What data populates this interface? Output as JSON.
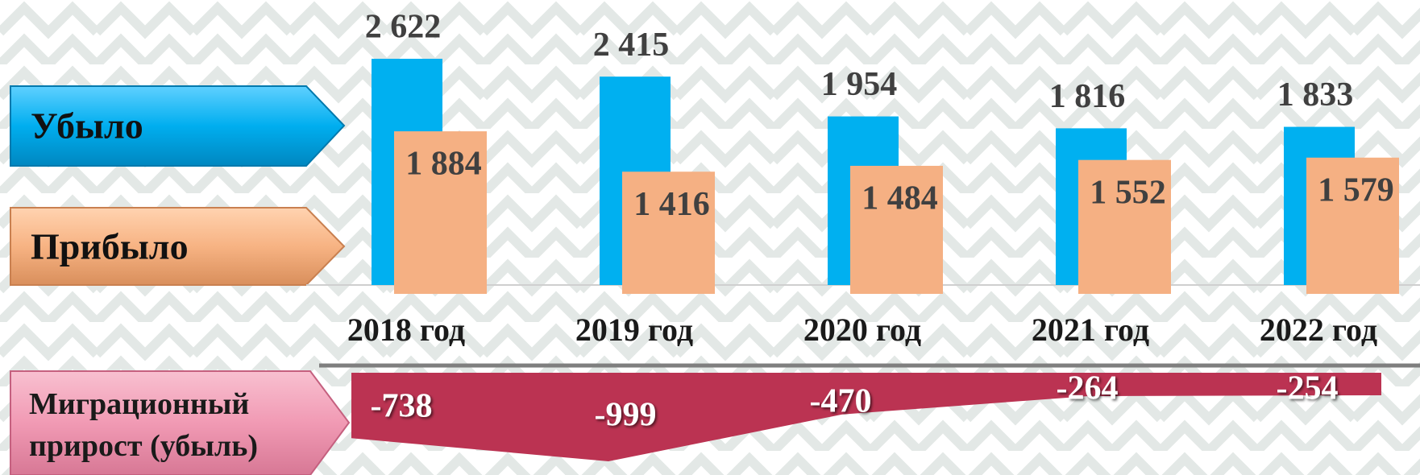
{
  "chart_data": [
    {
      "type": "bar",
      "categories": [
        "2018 год",
        "2019 год",
        "2020 год",
        "2021 год",
        "2022 год"
      ],
      "series": [
        {
          "name": "Убыло",
          "color": "#00b0f0",
          "values": [
            2622,
            2415,
            1954,
            1816,
            1833
          ],
          "value_labels": [
            "2 622",
            "2 415",
            "1 954",
            "1 816",
            "1 833"
          ]
        },
        {
          "name": "Прибыло",
          "color": "#f5b083",
          "values": [
            1884,
            1416,
            1484,
            1552,
            1579
          ],
          "value_labels": [
            "1 884",
            "1 416",
            "1 484",
            "1 552",
            "1 579"
          ]
        }
      ]
    },
    {
      "type": "area",
      "series": [
        {
          "name": "Миграционный прирост (убыль)",
          "color": "#bb3352",
          "values": [
            -738,
            -999,
            -470,
            -264,
            -254
          ]
        }
      ]
    }
  ]
}
